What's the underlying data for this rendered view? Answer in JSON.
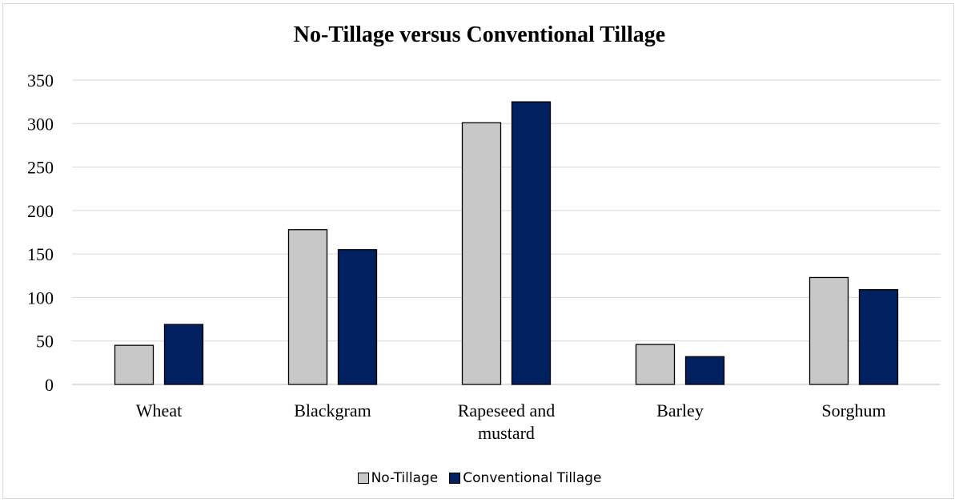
{
  "chart_data": {
    "type": "bar",
    "title": "No-Tillage versus Conventional Tillage",
    "categories": [
      [
        "Wheat"
      ],
      [
        "Blackgram"
      ],
      [
        "Rapeseed and",
        "mustard"
      ],
      [
        "Barley"
      ],
      [
        "Sorghum"
      ]
    ],
    "series": [
      {
        "name": "No-Tillage",
        "color": "#c8c8c8",
        "values": [
          45,
          178,
          301,
          46,
          123
        ]
      },
      {
        "name": "Conventional Tillage",
        "color": "#002060",
        "values": [
          69,
          155,
          325,
          32,
          109
        ]
      }
    ],
    "ylim": [
      0,
      350
    ],
    "yticks": [
      0,
      50,
      100,
      150,
      200,
      250,
      300,
      350
    ],
    "grid": true,
    "legend_position": "bottom"
  }
}
